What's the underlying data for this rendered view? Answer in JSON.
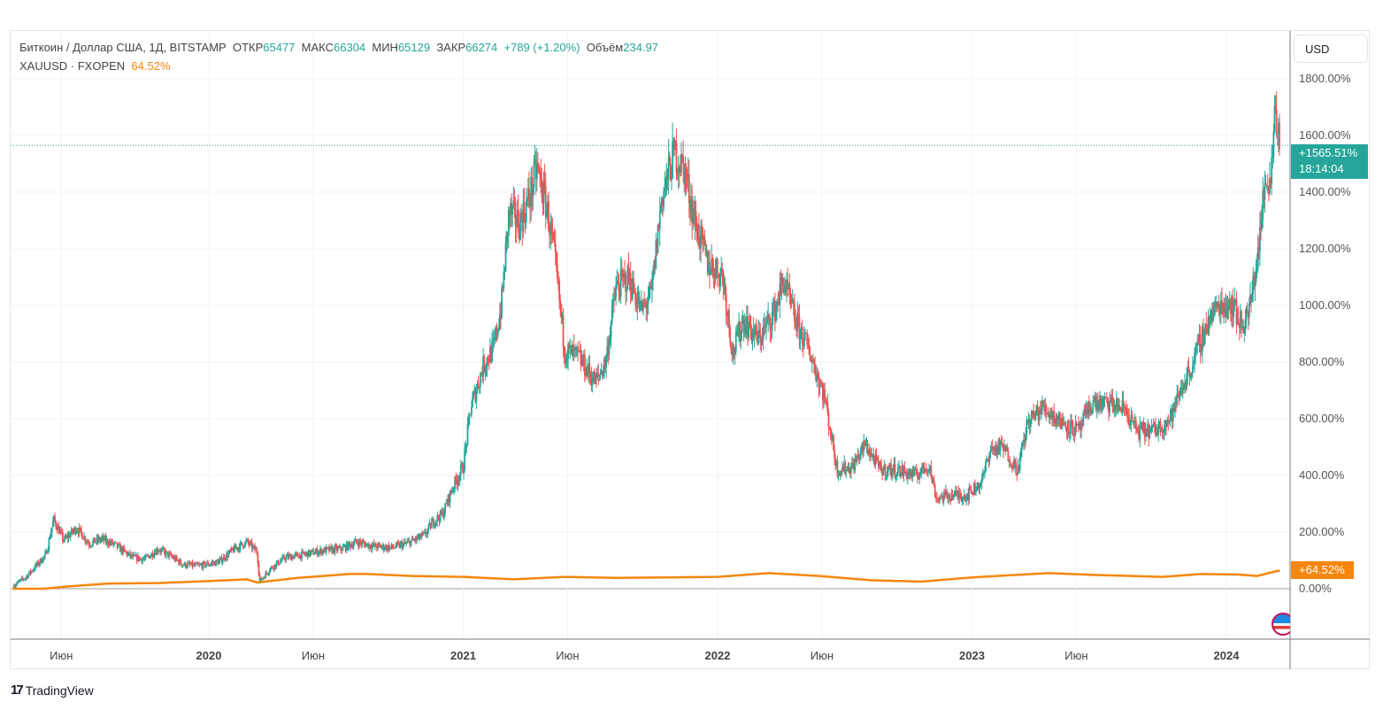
{
  "legend": {
    "symbol": "Биткоин / Доллар США, 1Д, BITSTAMP",
    "open_label": "ОТКР",
    "open": "65477",
    "high_label": "МАКС",
    "high": "66304",
    "low_label": "МИН",
    "low": "65129",
    "close_label": "ЗАКР",
    "close": "66274",
    "change": "+789 (+1.20%)",
    "volume_label": "Объём",
    "volume": "234.97",
    "compare_symbol": "XAUUSD · FXOPEN",
    "compare_value": "64.52%"
  },
  "currency_button": "USD",
  "last_price_label": "+1565.51%",
  "countdown": "18:14:04",
  "compare_price_label": "+64.52%",
  "brand": "TradingView",
  "colors": {
    "up": "#26a69a",
    "down": "#ef5350",
    "compare": "#f7860d",
    "grid": "#f0f3fa"
  },
  "chart_data": {
    "type": "candlestick+line",
    "ylabel_unit": "%",
    "ylim": [
      -180,
      1800
    ],
    "yticks": [
      "1800.00%",
      "1600.00%",
      "1400.00%",
      "1200.00%",
      "1000.00%",
      "800.00%",
      "600.00%",
      "400.00%",
      "200.00%",
      "0.00%"
    ],
    "xticks": [
      {
        "label": "Июн",
        "t": 2019.42
      },
      {
        "label": "2020",
        "t": 2020.0
      },
      {
        "label": "Июн",
        "t": 2020.41
      },
      {
        "label": "2021",
        "t": 2021.0
      },
      {
        "label": "Июн",
        "t": 2021.41
      },
      {
        "label": "2022",
        "t": 2022.0
      },
      {
        "label": "Июн",
        "t": 2022.41
      },
      {
        "label": "2023",
        "t": 2023.0
      },
      {
        "label": "Июн",
        "t": 2023.41
      },
      {
        "label": "2024",
        "t": 2024.0
      }
    ],
    "grid": true,
    "series": [
      {
        "name": "Биткоин / Доллар США",
        "style": "candles",
        "points": [
          [
            2019.23,
            10
          ],
          [
            2019.28,
            40
          ],
          [
            2019.33,
            90
          ],
          [
            2019.36,
            120
          ],
          [
            2019.39,
            245
          ],
          [
            2019.43,
            170
          ],
          [
            2019.48,
            215
          ],
          [
            2019.53,
            160
          ],
          [
            2019.58,
            175
          ],
          [
            2019.63,
            155
          ],
          [
            2019.7,
            110
          ],
          [
            2019.75,
            105
          ],
          [
            2019.8,
            140
          ],
          [
            2019.85,
            115
          ],
          [
            2019.9,
            85
          ],
          [
            2019.96,
            80
          ],
          [
            2020.04,
            95
          ],
          [
            2020.1,
            140
          ],
          [
            2020.15,
            165
          ],
          [
            2020.19,
            130
          ],
          [
            2020.2,
            25
          ],
          [
            2020.24,
            70
          ],
          [
            2020.3,
            110
          ],
          [
            2020.37,
            120
          ],
          [
            2020.45,
            135
          ],
          [
            2020.52,
            140
          ],
          [
            2020.58,
            165
          ],
          [
            2020.65,
            150
          ],
          [
            2020.72,
            145
          ],
          [
            2020.78,
            160
          ],
          [
            2020.85,
            190
          ],
          [
            2020.88,
            235
          ],
          [
            2020.92,
            265
          ],
          [
            2020.96,
            360
          ],
          [
            2021.0,
            430
          ],
          [
            2021.03,
            640
          ],
          [
            2021.08,
            790
          ],
          [
            2021.12,
            850
          ],
          [
            2021.15,
            1000
          ],
          [
            2021.18,
            1330
          ],
          [
            2021.22,
            1290
          ],
          [
            2021.26,
            1380
          ],
          [
            2021.29,
            1485
          ],
          [
            2021.33,
            1340
          ],
          [
            2021.36,
            1160
          ],
          [
            2021.4,
            840
          ],
          [
            2021.45,
            820
          ],
          [
            2021.52,
            730
          ],
          [
            2021.56,
            800
          ],
          [
            2021.6,
            1060
          ],
          [
            2021.65,
            1100
          ],
          [
            2021.7,
            980
          ],
          [
            2021.74,
            1040
          ],
          [
            2021.78,
            1380
          ],
          [
            2021.83,
            1540
          ],
          [
            2021.87,
            1480
          ],
          [
            2021.91,
            1300
          ],
          [
            2021.96,
            1150
          ],
          [
            2022.02,
            1110
          ],
          [
            2022.06,
            830
          ],
          [
            2022.1,
            950
          ],
          [
            2022.16,
            880
          ],
          [
            2022.22,
            970
          ],
          [
            2022.26,
            1090
          ],
          [
            2022.3,
            960
          ],
          [
            2022.36,
            840
          ],
          [
            2022.42,
            680
          ],
          [
            2022.47,
            420
          ],
          [
            2022.53,
            430
          ],
          [
            2022.58,
            510
          ],
          [
            2022.64,
            420
          ],
          [
            2022.7,
            420
          ],
          [
            2022.78,
            400
          ],
          [
            2022.83,
            440
          ],
          [
            2022.86,
            320
          ],
          [
            2022.92,
            330
          ],
          [
            2022.98,
            330
          ],
          [
            2023.04,
            380
          ],
          [
            2023.07,
            490
          ],
          [
            2023.12,
            500
          ],
          [
            2023.18,
            420
          ],
          [
            2023.22,
            590
          ],
          [
            2023.28,
            640
          ],
          [
            2023.35,
            590
          ],
          [
            2023.42,
            555
          ],
          [
            2023.47,
            655
          ],
          [
            2023.55,
            650
          ],
          [
            2023.6,
            635
          ],
          [
            2023.65,
            555
          ],
          [
            2023.72,
            560
          ],
          [
            2023.78,
            600
          ],
          [
            2023.82,
            700
          ],
          [
            2023.87,
            800
          ],
          [
            2023.93,
            950
          ],
          [
            2023.97,
            1000
          ],
          [
            2024.02,
            1010
          ],
          [
            2024.06,
            930
          ],
          [
            2024.09,
            980
          ],
          [
            2024.12,
            1160
          ],
          [
            2024.15,
            1410
          ],
          [
            2024.18,
            1500
          ],
          [
            2024.19,
            1735
          ],
          [
            2024.21,
            1565
          ]
        ]
      },
      {
        "name": "XAUUSD · FXOPEN",
        "style": "line",
        "points": [
          [
            2019.23,
            0
          ],
          [
            2019.35,
            0
          ],
          [
            2019.45,
            8
          ],
          [
            2019.6,
            18
          ],
          [
            2019.8,
            20
          ],
          [
            2020.0,
            27
          ],
          [
            2020.15,
            33
          ],
          [
            2020.19,
            22
          ],
          [
            2020.22,
            25
          ],
          [
            2020.35,
            38
          ],
          [
            2020.55,
            52
          ],
          [
            2020.62,
            52
          ],
          [
            2020.8,
            45
          ],
          [
            2021.0,
            42
          ],
          [
            2021.2,
            33
          ],
          [
            2021.4,
            42
          ],
          [
            2021.6,
            38
          ],
          [
            2021.8,
            40
          ],
          [
            2022.0,
            42
          ],
          [
            2022.2,
            55
          ],
          [
            2022.4,
            45
          ],
          [
            2022.6,
            30
          ],
          [
            2022.8,
            25
          ],
          [
            2023.0,
            40
          ],
          [
            2023.3,
            55
          ],
          [
            2023.5,
            48
          ],
          [
            2023.75,
            42
          ],
          [
            2023.9,
            52
          ],
          [
            2024.05,
            50
          ],
          [
            2024.12,
            45
          ],
          [
            2024.18,
            58
          ],
          [
            2024.21,
            64.52
          ]
        ]
      }
    ]
  }
}
